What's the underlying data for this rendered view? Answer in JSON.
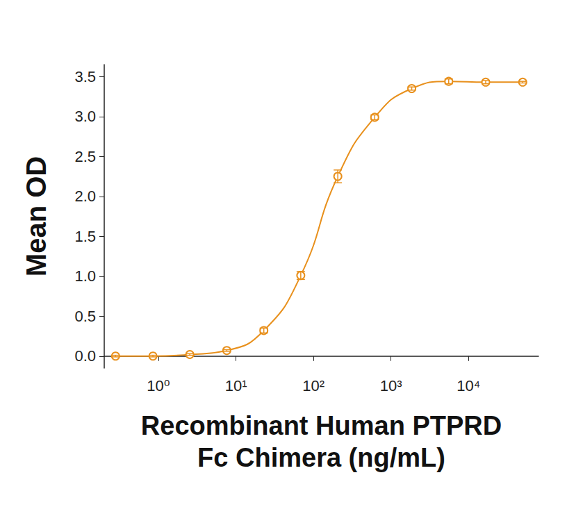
{
  "chart_data": {
    "type": "line",
    "xlabel": "Recombinant Human PTPRD\nFc Chimera (ng/mL)",
    "ylabel": "Mean OD",
    "x": [
      0.28,
      0.85,
      2.54,
      7.62,
      22.9,
      68.6,
      206,
      617,
      1852,
      5556,
      16667,
      50000
    ],
    "values": [
      0.0,
      0.0,
      0.02,
      0.07,
      0.32,
      1.01,
      2.25,
      2.99,
      3.35,
      3.44,
      3.43,
      3.43
    ],
    "errors": [
      0.01,
      0.01,
      0.01,
      0.01,
      0.03,
      0.05,
      0.08,
      0.03,
      0.02,
      0.03,
      0.02,
      0.01
    ],
    "color": "#e8901c",
    "marker": "circle",
    "line_style": "solid",
    "log": "x",
    "grid": false,
    "xlim": [
      0.2,
      80000
    ],
    "xticks": [
      {
        "value": 1,
        "label": "10⁰"
      },
      {
        "value": 10,
        "label": "10¹"
      },
      {
        "value": 100,
        "label": "10²"
      },
      {
        "value": 1000,
        "label": "10³"
      },
      {
        "value": 10000,
        "label": "10⁴"
      }
    ],
    "ylim": [
      -0.15,
      3.65
    ],
    "yticks": [
      {
        "value": 0,
        "label": "0.0"
      },
      0.5,
      {
        "value": 1,
        "label": "1.0"
      },
      1.5,
      {
        "value": 2,
        "label": "2.0"
      },
      2.5,
      {
        "value": 3,
        "label": "3.0"
      },
      3.5
    ]
  }
}
